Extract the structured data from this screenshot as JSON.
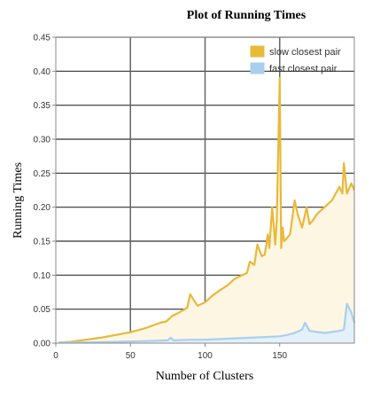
{
  "chart_data": {
    "type": "line",
    "title": "Plot of Running Times",
    "xlabel": "Number of Clusters",
    "ylabel": "Running Times",
    "xlim": [
      0,
      200
    ],
    "ylim": [
      0,
      0.45
    ],
    "x_ticks": [
      0,
      50,
      100,
      150
    ],
    "x_tick_labels": [
      "0",
      "50",
      "100",
      "150"
    ],
    "y_ticks": [
      0,
      0.05,
      0.1,
      0.15,
      0.2,
      0.25,
      0.3,
      0.35,
      0.4,
      0.45
    ],
    "y_tick_labels": [
      "0.00",
      "0.05",
      "0.10",
      "0.15",
      "0.20",
      "0.25",
      "0.30",
      "0.35",
      "0.40",
      "0.45"
    ],
    "grid": true,
    "legend_position": "top-right",
    "series": [
      {
        "name": "slow closest pair",
        "color": "#e8b93a",
        "fill": "#fdf6e3",
        "x": [
          2,
          10,
          20,
          30,
          40,
          50,
          60,
          70,
          74,
          76,
          78,
          80,
          85,
          88,
          90,
          92,
          95,
          100,
          105,
          110,
          115,
          120,
          125,
          128,
          130,
          133,
          135,
          138,
          140,
          142,
          143,
          145,
          147,
          148,
          150,
          151,
          152,
          153,
          155,
          157,
          160,
          162,
          165,
          168,
          170,
          172,
          175,
          180,
          185,
          190,
          192,
          193,
          195,
          198,
          200
        ],
        "y": [
          0.001,
          0.002,
          0.005,
          0.008,
          0.012,
          0.016,
          0.022,
          0.03,
          0.032,
          0.036,
          0.04,
          0.042,
          0.048,
          0.052,
          0.072,
          0.065,
          0.055,
          0.06,
          0.07,
          0.078,
          0.085,
          0.095,
          0.1,
          0.103,
          0.12,
          0.115,
          0.145,
          0.128,
          0.13,
          0.16,
          0.14,
          0.2,
          0.145,
          0.18,
          0.39,
          0.14,
          0.17,
          0.15,
          0.155,
          0.16,
          0.21,
          0.19,
          0.17,
          0.2,
          0.175,
          0.18,
          0.19,
          0.2,
          0.21,
          0.23,
          0.22,
          0.265,
          0.22,
          0.235,
          0.225
        ]
      },
      {
        "name": "fast closest pair",
        "color": "#a9cfee",
        "fill": "#e4f1fb",
        "x": [
          2,
          20,
          40,
          60,
          75,
          77,
          79,
          90,
          100,
          110,
          120,
          130,
          140,
          150,
          155,
          160,
          165,
          167,
          170,
          180,
          190,
          193,
          195,
          198,
          200
        ],
        "y": [
          0.001,
          0.001,
          0.002,
          0.003,
          0.004,
          0.008,
          0.004,
          0.005,
          0.005,
          0.006,
          0.007,
          0.008,
          0.009,
          0.01,
          0.012,
          0.015,
          0.02,
          0.03,
          0.018,
          0.015,
          0.018,
          0.02,
          0.058,
          0.045,
          0.03
        ]
      }
    ]
  }
}
